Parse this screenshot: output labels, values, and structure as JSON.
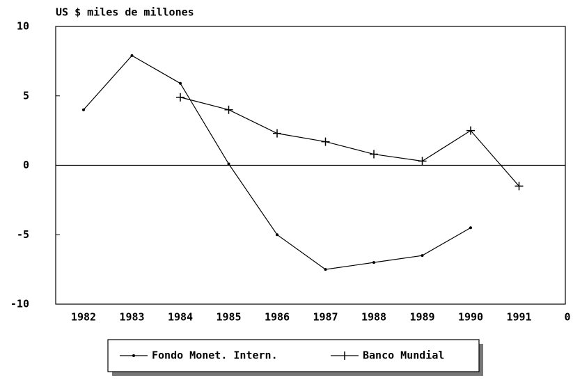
{
  "chart_data": {
    "type": "line",
    "title": "US $ miles de millones",
    "categories": [
      "1982",
      "1983",
      "1984",
      "1985",
      "1986",
      "1987",
      "1988",
      "1989",
      "1990",
      "1991",
      "0"
    ],
    "series": [
      {
        "name": "Fondo Monet. Intern.",
        "color": "#000000",
        "marker": "dot",
        "values": [
          4,
          7.9,
          5.9,
          0.1,
          -5,
          -7.5,
          -7,
          -6.5,
          -4.5,
          null,
          null
        ]
      },
      {
        "name": "Banco Mundial",
        "color": "#000000",
        "marker": "plus",
        "values": [
          null,
          null,
          4.9,
          4,
          2.3,
          1.7,
          0.8,
          0.3,
          2.5,
          -1.5,
          null
        ]
      }
    ],
    "ylim": [
      -10,
      10
    ],
    "yticks": [
      10,
      5,
      0,
      -5,
      -10
    ],
    "zero_line": true,
    "legend": "bottom"
  }
}
